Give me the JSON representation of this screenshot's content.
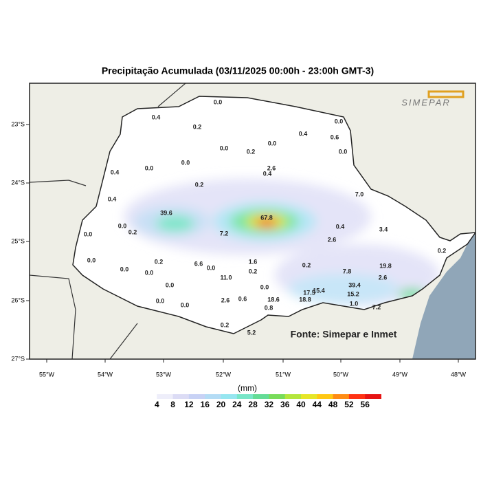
{
  "header": {
    "title": "Precipitação Acumulada (03/11/2025 00:00h - 23:00h GMT-3)",
    "logo": "SIMEPAR"
  },
  "map": {
    "lat_labels": [
      "23°S",
      "24°S",
      "25°S",
      "26°S",
      "27°S"
    ],
    "lon_labels": [
      "55°W",
      "54°W",
      "53°W",
      "52°W",
      "51°W",
      "50°W",
      "49°W",
      "48°W"
    ],
    "stations": [
      "0.0",
      "0.4",
      "0.2",
      "0.0",
      "0.4",
      "0.6",
      "0.0",
      "0.2",
      "0.0",
      "0.0",
      "0.0",
      "0.0",
      "2.6",
      "0.4",
      "0.4",
      "0.2",
      "7.0",
      "0.4",
      "39.6",
      "67.8",
      "0.0",
      "0.2",
      "0.4",
      "3.4",
      "7.2",
      "0.0",
      "2.6",
      "0.0",
      "0.2",
      "1.6",
      "6.6",
      "0.0",
      "0.2",
      "19.8",
      "0.0",
      "0.0",
      "7.8",
      "0.2",
      "11.0",
      "2.6",
      "39.4",
      "15.2",
      "0.0",
      "0.0",
      "0.0",
      "0.0",
      "2.6",
      "0.6",
      "18.6",
      "17.5",
      "15.4",
      "18.8",
      "1.0",
      "0.8",
      "7.2",
      "0.2",
      "5.2",
      "0.2"
    ],
    "source": "Fonte: Simepar e Inmet"
  },
  "legend": {
    "unit": "(mm)",
    "ticks": [
      4,
      8,
      12,
      16,
      20,
      24,
      28,
      32,
      36,
      40,
      44,
      48,
      52,
      56
    ],
    "colors": [
      "#ffffff",
      "#eeeefa",
      "#dcdcf5",
      "#c8d2f5",
      "#b4dcf5",
      "#96e6f0",
      "#78e6c8",
      "#64dc96",
      "#78dc5a",
      "#b4e63c",
      "#e6e628",
      "#ffc814",
      "#ff8c14",
      "#ff3214",
      "#e61414"
    ]
  }
}
